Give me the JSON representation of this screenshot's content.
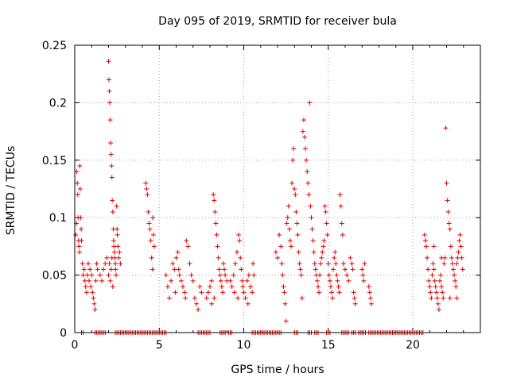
{
  "chart_data": {
    "type": "scatter",
    "title": "Day 095 of 2019, SRMTID for receiver bula",
    "xlabel": "GPS time / hours",
    "ylabel": "SRMTID / TECUs",
    "xlim": [
      0,
      24
    ],
    "ylim": [
      0,
      0.25
    ],
    "x_ticks": [
      0,
      5,
      10,
      15,
      20
    ],
    "x_tick_labels": [
      "0",
      "5",
      "10",
      "15",
      "20"
    ],
    "y_ticks": [
      0,
      0.05,
      0.1,
      0.15,
      0.2,
      0.25
    ],
    "y_tick_labels": [
      "0",
      "0.05",
      "0.1",
      "0.15",
      "0.2",
      "0.25"
    ],
    "grid": true,
    "marker": "+",
    "color": "#e00000",
    "series": [
      {
        "name": "SRMTID",
        "points": [
          [
            0.05,
            0.085
          ],
          [
            0.1,
            0.095
          ],
          [
            0.12,
            0.14
          ],
          [
            0.15,
            0.13
          ],
          [
            0.18,
            0.12
          ],
          [
            0.2,
            0.1
          ],
          [
            0.22,
            0.08
          ],
          [
            0.25,
            0.075
          ],
          [
            0.28,
            0.07
          ],
          [
            0.3,
            0.145
          ],
          [
            0.32,
            0.125
          ],
          [
            0.35,
            0.1
          ],
          [
            0.38,
            0.09
          ],
          [
            0.4,
            0.08
          ],
          [
            0.45,
            0.06
          ],
          [
            0.5,
            0.05
          ],
          [
            0.55,
            0.055
          ],
          [
            0.6,
            0.045
          ],
          [
            0.65,
            0.04
          ],
          [
            0.7,
            0.035
          ],
          [
            0.75,
            0.05
          ],
          [
            0.8,
            0.06
          ],
          [
            0.85,
            0.045
          ],
          [
            0.9,
            0.055
          ],
          [
            0.95,
            0.04
          ],
          [
            1.0,
            0.05
          ],
          [
            1.05,
            0.035
          ],
          [
            1.1,
            0.03
          ],
          [
            1.15,
            0.025
          ],
          [
            1.2,
            0.02
          ],
          [
            1.25,
            0.045
          ],
          [
            1.3,
            0.06
          ],
          [
            1.35,
            0.055
          ],
          [
            1.5,
            0.05
          ],
          [
            1.6,
            0.045
          ],
          [
            1.7,
            0.055
          ],
          [
            1.8,
            0.06
          ],
          [
            1.9,
            0.065
          ],
          [
            2.0,
            0.236
          ],
          [
            2.02,
            0.22
          ],
          [
            2.05,
            0.21
          ],
          [
            2.07,
            0.2
          ],
          [
            2.1,
            0.185
          ],
          [
            2.12,
            0.165
          ],
          [
            2.15,
            0.155
          ],
          [
            2.18,
            0.145
          ],
          [
            2.2,
            0.135
          ],
          [
            2.22,
            0.115
          ],
          [
            2.25,
            0.105
          ],
          [
            2.28,
            0.09
          ],
          [
            2.3,
            0.08
          ],
          [
            2.32,
            0.075
          ],
          [
            2.35,
            0.07
          ],
          [
            2.38,
            0.065
          ],
          [
            2.4,
            0.06
          ],
          [
            2.42,
            0.055
          ],
          [
            2.45,
            0.05
          ],
          [
            2.48,
            0.11
          ],
          [
            2.5,
            0.09
          ],
          [
            2.52,
            0.085
          ],
          [
            2.55,
            0.075
          ],
          [
            2.6,
            0.065
          ],
          [
            2.65,
            0.07
          ],
          [
            2.7,
            0.06
          ],
          [
            2.0,
            0.05
          ],
          [
            2.05,
            0.06
          ],
          [
            2.1,
            0.045
          ],
          [
            2.15,
            0.055
          ],
          [
            2.2,
            0.065
          ],
          [
            2.25,
            0.04
          ],
          [
            4.2,
            0.13
          ],
          [
            4.25,
            0.125
          ],
          [
            4.3,
            0.12
          ],
          [
            4.35,
            0.105
          ],
          [
            4.4,
            0.095
          ],
          [
            4.45,
            0.09
          ],
          [
            4.5,
            0.08
          ],
          [
            4.55,
            0.065
          ],
          [
            4.6,
            0.055
          ],
          [
            4.62,
            0.1
          ],
          [
            4.65,
            0.085
          ],
          [
            4.7,
            0.075
          ],
          [
            5.4,
            0.05
          ],
          [
            5.5,
            0.04
          ],
          [
            5.6,
            0.03
          ],
          [
            5.7,
            0.045
          ],
          [
            5.8,
            0.06
          ],
          [
            5.9,
            0.055
          ],
          [
            6.0,
            0.065
          ],
          [
            6.1,
            0.07
          ],
          [
            6.2,
            0.05
          ],
          [
            6.3,
            0.045
          ],
          [
            6.4,
            0.04
          ],
          [
            6.5,
            0.035
          ],
          [
            6.6,
            0.08
          ],
          [
            6.7,
            0.075
          ],
          [
            6.8,
            0.06
          ],
          [
            6.9,
            0.05
          ],
          [
            7.0,
            0.045
          ],
          [
            7.1,
            0.03
          ],
          [
            7.2,
            0.025
          ],
          [
            7.3,
            0.02
          ],
          [
            7.4,
            0.04
          ],
          [
            7.5,
            0.035
          ],
          [
            6.55,
            0.03
          ],
          [
            6.15,
            0.055
          ],
          [
            5.95,
            0.035
          ],
          [
            7.8,
            0.03
          ],
          [
            7.9,
            0.035
          ],
          [
            8.0,
            0.04
          ],
          [
            8.1,
            0.045
          ],
          [
            8.2,
            0.12
          ],
          [
            8.25,
            0.115
          ],
          [
            8.3,
            0.105
          ],
          [
            8.35,
            0.095
          ],
          [
            8.4,
            0.085
          ],
          [
            8.45,
            0.075
          ],
          [
            8.5,
            0.065
          ],
          [
            8.55,
            0.055
          ],
          [
            8.6,
            0.05
          ],
          [
            8.65,
            0.045
          ],
          [
            8.7,
            0.04
          ],
          [
            8.75,
            0.035
          ],
          [
            8.8,
            0.06
          ],
          [
            8.85,
            0.055
          ],
          [
            8.9,
            0.05
          ],
          [
            9.0,
            0.045
          ],
          [
            8.1,
            0.025
          ],
          [
            8.25,
            0.03
          ],
          [
            9.2,
            0.045
          ],
          [
            9.3,
            0.04
          ],
          [
            9.4,
            0.05
          ],
          [
            9.5,
            0.06
          ],
          [
            9.6,
            0.07
          ],
          [
            9.7,
            0.085
          ],
          [
            9.75,
            0.08
          ],
          [
            9.8,
            0.065
          ],
          [
            9.85,
            0.055
          ],
          [
            9.9,
            0.045
          ],
          [
            9.95,
            0.04
          ],
          [
            10.0,
            0.035
          ],
          [
            10.1,
            0.03
          ],
          [
            10.2,
            0.045
          ],
          [
            10.3,
            0.05
          ],
          [
            10.4,
            0.04
          ],
          [
            10.5,
            0.035
          ],
          [
            10.55,
            0.06
          ],
          [
            10.6,
            0.05
          ],
          [
            9.45,
            0.035
          ],
          [
            9.65,
            0.03
          ],
          [
            10.25,
            0.025
          ],
          [
            11.9,
            0.07
          ],
          [
            12.0,
            0.065
          ],
          [
            12.1,
            0.085
          ],
          [
            12.2,
            0.075
          ],
          [
            12.25,
            0.06
          ],
          [
            12.3,
            0.05
          ],
          [
            12.35,
            0.04
          ],
          [
            12.4,
            0.035
          ],
          [
            12.45,
            0.025
          ],
          [
            12.5,
            0.01
          ],
          [
            12.55,
            0.095
          ],
          [
            12.6,
            0.1
          ],
          [
            12.65,
            0.11
          ],
          [
            12.7,
            0.09
          ],
          [
            12.75,
            0.08
          ],
          [
            12.8,
            0.075
          ],
          [
            12.85,
            0.13
          ],
          [
            12.9,
            0.15
          ],
          [
            12.95,
            0.16
          ],
          [
            13.0,
            0.125
          ],
          [
            13.05,
            0.12
          ],
          [
            13.1,
            0.105
          ],
          [
            13.15,
            0.095
          ],
          [
            13.2,
            0.085
          ],
          [
            13.25,
            0.07
          ],
          [
            13.3,
            0.06
          ],
          [
            13.35,
            0.055
          ],
          [
            13.4,
            0.05
          ],
          [
            13.45,
            0.03
          ],
          [
            13.5,
            0.175
          ],
          [
            13.55,
            0.185
          ],
          [
            13.6,
            0.17
          ],
          [
            13.65,
            0.16
          ],
          [
            13.7,
            0.15
          ],
          [
            13.75,
            0.14
          ],
          [
            13.8,
            0.13
          ],
          [
            13.85,
            0.12
          ],
          [
            13.9,
            0.2
          ],
          [
            13.95,
            0.11
          ],
          [
            14.0,
            0.1
          ],
          [
            14.05,
            0.09
          ],
          [
            14.1,
            0.08
          ],
          [
            14.15,
            0.07
          ],
          [
            14.2,
            0.06
          ],
          [
            14.25,
            0.055
          ],
          [
            14.3,
            0.05
          ],
          [
            14.35,
            0.045
          ],
          [
            14.4,
            0.04
          ],
          [
            14.45,
            0.035
          ],
          [
            14.5,
            0.05
          ],
          [
            14.55,
            0.06
          ],
          [
            14.6,
            0.065
          ],
          [
            14.65,
            0.07
          ],
          [
            14.7,
            0.075
          ],
          [
            14.75,
            0.08
          ],
          [
            14.8,
            0.11
          ],
          [
            14.85,
            0.105
          ],
          [
            14.9,
            0.095
          ],
          [
            14.95,
            0.085
          ],
          [
            15.0,
            0.06
          ],
          [
            15.05,
            0.05
          ],
          [
            15.1,
            0.045
          ],
          [
            15.15,
            0.04
          ],
          [
            15.2,
            0.035
          ],
          [
            15.25,
            0.03
          ],
          [
            15.3,
            0.055
          ],
          [
            15.35,
            0.065
          ],
          [
            15.4,
            0.07
          ],
          [
            15.45,
            0.06
          ],
          [
            15.5,
            0.05
          ],
          [
            15.55,
            0.045
          ],
          [
            15.6,
            0.04
          ],
          [
            15.65,
            0.035
          ],
          [
            15.7,
            0.12
          ],
          [
            15.75,
            0.11
          ],
          [
            15.8,
            0.095
          ],
          [
            15.85,
            0.085
          ],
          [
            15.9,
            0.06
          ],
          [
            16.0,
            0.055
          ],
          [
            16.1,
            0.05
          ],
          [
            16.2,
            0.045
          ],
          [
            16.3,
            0.065
          ],
          [
            16.4,
            0.06
          ],
          [
            16.45,
            0.055
          ],
          [
            16.5,
            0.035
          ],
          [
            16.55,
            0.03
          ],
          [
            16.6,
            0.025
          ],
          [
            17.0,
            0.055
          ],
          [
            17.05,
            0.05
          ],
          [
            17.1,
            0.045
          ],
          [
            17.15,
            0.06
          ],
          [
            17.4,
            0.04
          ],
          [
            17.45,
            0.035
          ],
          [
            17.5,
            0.03
          ],
          [
            17.55,
            0.025
          ],
          [
            20.7,
            0.085
          ],
          [
            20.75,
            0.08
          ],
          [
            20.8,
            0.075
          ],
          [
            20.85,
            0.065
          ],
          [
            20.9,
            0.055
          ],
          [
            20.95,
            0.045
          ],
          [
            21.0,
            0.04
          ],
          [
            21.05,
            0.035
          ],
          [
            21.1,
            0.03
          ],
          [
            21.15,
            0.05
          ],
          [
            21.2,
            0.06
          ],
          [
            21.25,
            0.055
          ],
          [
            21.3,
            0.045
          ],
          [
            21.35,
            0.04
          ],
          [
            21.4,
            0.035
          ],
          [
            21.45,
            0.03
          ],
          [
            21.5,
            0.025
          ],
          [
            21.55,
            0.02
          ],
          [
            21.6,
            0.045
          ],
          [
            21.65,
            0.05
          ],
          [
            21.7,
            0.04
          ],
          [
            21.75,
            0.035
          ],
          [
            21.8,
            0.03
          ],
          [
            21.85,
            0.06
          ],
          [
            21.9,
            0.065
          ],
          [
            21.95,
            0.178
          ],
          [
            22.0,
            0.13
          ],
          [
            22.05,
            0.115
          ],
          [
            22.1,
            0.105
          ],
          [
            22.15,
            0.095
          ],
          [
            22.2,
            0.09
          ],
          [
            22.25,
            0.075
          ],
          [
            22.3,
            0.065
          ],
          [
            22.35,
            0.06
          ],
          [
            22.4,
            0.055
          ],
          [
            22.45,
            0.05
          ],
          [
            22.5,
            0.045
          ],
          [
            22.55,
            0.04
          ],
          [
            22.6,
            0.06
          ],
          [
            22.65,
            0.065
          ],
          [
            22.7,
            0.07
          ],
          [
            22.75,
            0.08
          ],
          [
            22.8,
            0.085
          ],
          [
            22.85,
            0.075
          ],
          [
            22.9,
            0.065
          ],
          [
            22.95,
            0.055
          ],
          [
            21.25,
            0.075
          ],
          [
            21.7,
            0.065
          ],
          [
            22.2,
            0.03
          ],
          [
            22.6,
            0.03
          ]
        ]
      }
    ],
    "zero_bands": [
      [
        0.4,
        0.5
      ],
      [
        1.2,
        1.8
      ],
      [
        2.4,
        5.4
      ],
      [
        7.3,
        8.0
      ],
      [
        8.6,
        8.9
      ],
      [
        9.1,
        9.3
      ],
      [
        10.5,
        11.9
      ],
      [
        12.0,
        12.2
      ],
      [
        13.0,
        13.2
      ],
      [
        13.8,
        14.0
      ],
      [
        14.2,
        14.4
      ],
      [
        14.9,
        15.1
      ],
      [
        15.8,
        16.2
      ],
      [
        16.4,
        16.6
      ],
      [
        16.8,
        17.2
      ],
      [
        17.4,
        17.6
      ],
      [
        17.7,
        18.9
      ],
      [
        19.0,
        20.6
      ]
    ]
  }
}
